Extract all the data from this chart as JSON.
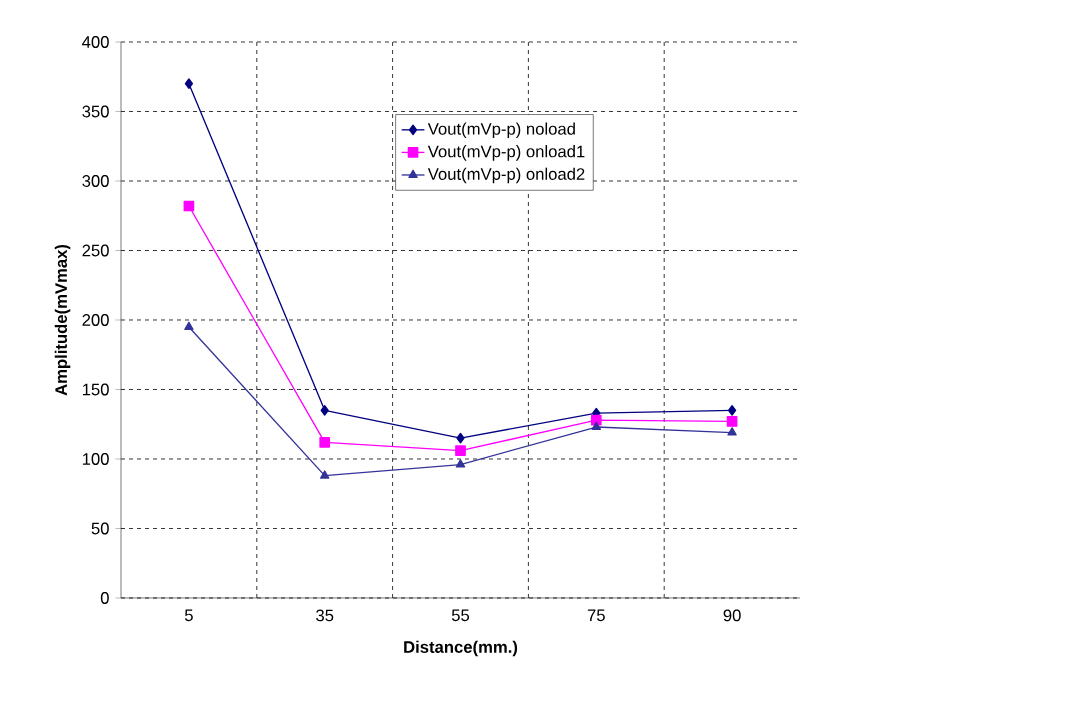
{
  "chart_data": {
    "type": "line",
    "xlabel": "Distance(mm.)",
    "ylabel": "Amplitude(mVmax)",
    "categories": [
      "5",
      "35",
      "55",
      "75",
      "90"
    ],
    "series": [
      {
        "name": "Vout(mVp-p) noload",
        "color": "#000080",
        "marker": "diamond",
        "values": [
          370,
          135,
          115,
          133,
          135
        ]
      },
      {
        "name": "Vout(mVp-p) onload1",
        "color": "#ff00ff",
        "marker": "square",
        "values": [
          282,
          112,
          106,
          128,
          127
        ]
      },
      {
        "name": "Vout(mVp-p) onload2",
        "color": "#333399",
        "marker": "triangle",
        "values": [
          195,
          88,
          96,
          123,
          119
        ]
      }
    ],
    "ylim": [
      0,
      400
    ],
    "yticks": [
      0,
      50,
      100,
      150,
      200,
      250,
      300,
      350,
      400
    ],
    "grid": true,
    "legend": "top"
  }
}
